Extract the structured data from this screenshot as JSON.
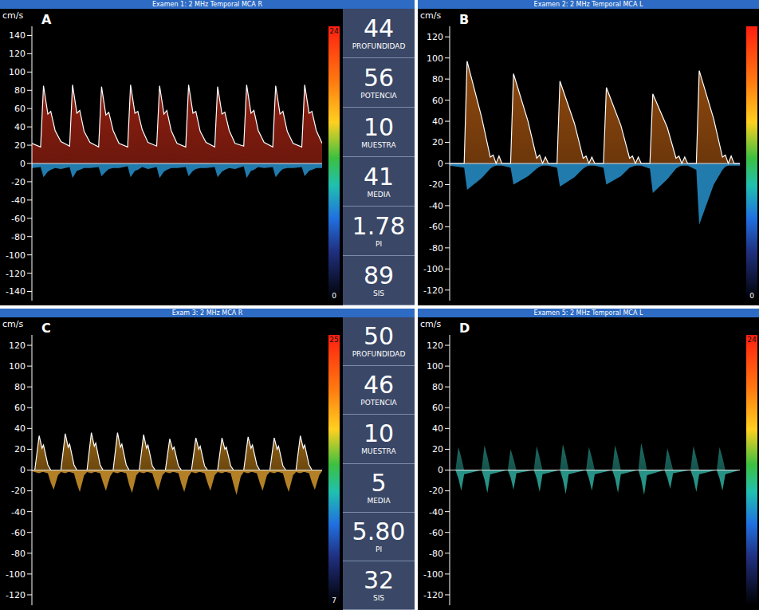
{
  "chart_data": [
    {
      "type": "area",
      "panel": "A",
      "title": "Examen 1: 2 MHz Temporal  MCA R",
      "y_label": "cm/s",
      "grid": false,
      "tick_labels": "y",
      "line_style": "solid",
      "color": "#f0341c",
      "xlim": [
        0,
        100
      ],
      "ylim": [
        -150,
        150
      ],
      "yticks": [
        140,
        120,
        100,
        80,
        60,
        40,
        20,
        0,
        -20,
        -40,
        -60,
        -80,
        -100,
        -120,
        -140
      ],
      "x": [
        0,
        3,
        4,
        5.5,
        6.5,
        8,
        10,
        13,
        14,
        15.5,
        16.5,
        18,
        20,
        23,
        24,
        25.5,
        26.5,
        28,
        30,
        33,
        34,
        35.5,
        36.5,
        38,
        40,
        43,
        44,
        45.5,
        46.5,
        48,
        50,
        53,
        54,
        55.5,
        56.5,
        58,
        60,
        63,
        64,
        65.5,
        66.5,
        68,
        70,
        73,
        74,
        75.5,
        76.5,
        78,
        80,
        83,
        84,
        85.5,
        86.5,
        88,
        90,
        93,
        94,
        95.5,
        96.5,
        98,
        100
      ],
      "values": [
        22,
        18,
        85,
        54,
        57,
        36,
        24,
        19,
        86,
        55,
        58,
        35,
        23,
        18,
        84,
        53,
        56,
        36,
        22,
        18,
        86,
        55,
        57,
        37,
        23,
        19,
        85,
        54,
        58,
        36,
        22,
        18,
        86,
        55,
        57,
        35,
        23,
        18,
        84,
        54,
        56,
        36,
        22,
        19,
        86,
        55,
        58,
        36,
        23,
        18,
        85,
        54,
        57,
        35,
        22,
        18,
        86,
        55,
        57,
        36,
        22
      ],
      "reverse": {
        "color": "#2a9ad8",
        "values": [
          -5,
          -4,
          -15,
          -9,
          -7,
          -5,
          -6,
          -4,
          -16,
          -8,
          -7,
          -5,
          -5,
          -4,
          -14,
          -9,
          -6,
          -5,
          -5,
          -3,
          -15,
          -8,
          -7,
          -4,
          -6,
          -4,
          -16,
          -9,
          -7,
          -5,
          -5,
          -4,
          -14,
          -8,
          -6,
          -5,
          -5,
          -4,
          -15,
          -9,
          -7,
          -5,
          -6,
          -3,
          -16,
          -8,
          -7,
          -4,
          -5,
          -4,
          -15,
          -9,
          -6,
          -5,
          -5,
          -4,
          -14,
          -8,
          -7,
          -5,
          -5
        ]
      },
      "colorbar": {
        "range": [
          0,
          24
        ],
        "ticks": [
          0,
          24
        ]
      },
      "readouts": [
        {
          "label": "PROFUNDIDAD",
          "value": 44
        },
        {
          "label": "POTENCIA",
          "value": 56
        },
        {
          "label": "MUESTRA",
          "value": 10
        },
        {
          "label": "MEDIA",
          "value": 41
        },
        {
          "label": "PI",
          "value": 1.78
        },
        {
          "label": "SIS",
          "value": 89
        }
      ]
    },
    {
      "type": "area",
      "panel": "B",
      "title": "Examen 2: 2 MHz Temporal  MCA L",
      "y_label": "cm/s",
      "grid": false,
      "tick_labels": "y",
      "line_style": "solid",
      "color": "#f07a18",
      "xlim": [
        0,
        100
      ],
      "ylim": [
        -130,
        130
      ],
      "yticks": [
        120,
        100,
        80,
        60,
        40,
        20,
        0,
        -20,
        -40,
        -60,
        -80,
        -100,
        -120
      ],
      "x": [
        0,
        5,
        6,
        11,
        14,
        15,
        16,
        17,
        18,
        21,
        22,
        27,
        30,
        31,
        32,
        33,
        34,
        37,
        38,
        43,
        46,
        47,
        48,
        49,
        50,
        53,
        54,
        59,
        62,
        63,
        64,
        65,
        66,
        69,
        70,
        75,
        78,
        79,
        80,
        81,
        82,
        85,
        86,
        91,
        94,
        95,
        96,
        97,
        98,
        100
      ],
      "values": [
        0,
        0,
        97,
        44,
        6,
        8,
        0,
        7,
        0,
        0,
        85,
        40,
        5,
        8,
        0,
        6,
        0,
        0,
        78,
        38,
        5,
        7,
        0,
        6,
        0,
        0,
        72,
        36,
        5,
        7,
        0,
        6,
        0,
        0,
        66,
        34,
        5,
        7,
        0,
        6,
        0,
        0,
        88,
        42,
        6,
        8,
        0,
        7,
        0,
        0
      ],
      "reverse": {
        "color": "#2a9ad8",
        "values": [
          -2,
          -4,
          -25,
          -14,
          -5,
          -3,
          -2,
          -2,
          -2,
          -4,
          -20,
          -12,
          -5,
          -3,
          -2,
          -2,
          -2,
          -4,
          -22,
          -13,
          -5,
          -3,
          -2,
          -2,
          -2,
          -4,
          -20,
          -12,
          -4,
          -3,
          -2,
          -2,
          -2,
          -5,
          -28,
          -15,
          -5,
          -3,
          -2,
          -2,
          -2,
          -6,
          -58,
          -20,
          -6,
          -3,
          -2,
          -2,
          -2,
          -2
        ]
      },
      "colorbar": {
        "range": [
          0,
          24
        ],
        "ticks": [
          0
        ]
      }
    },
    {
      "type": "area",
      "panel": "C",
      "title": "Exam 3: 2 MHz  MCA R",
      "y_label": "cm/s",
      "grid": false,
      "tick_labels": "y",
      "line_style": "solid",
      "color": "#f0a020",
      "xlim": [
        0,
        100
      ],
      "ylim": [
        -130,
        130
      ],
      "yticks": [
        120,
        100,
        80,
        60,
        40,
        20,
        0,
        -20,
        -40,
        -60,
        -80,
        -100,
        -120
      ],
      "x": [
        0,
        1,
        2.5,
        3.5,
        4,
        5.5,
        6.5,
        7.5,
        9,
        10,
        11.5,
        12.5,
        13,
        14.5,
        15.5,
        16.5,
        18,
        19,
        20.5,
        21.5,
        22,
        23.5,
        24.5,
        25.5,
        27,
        28,
        29.5,
        30.5,
        31,
        32.5,
        33.5,
        34.5,
        36,
        37,
        38.5,
        39.5,
        40,
        41.5,
        42.5,
        43.5,
        45,
        46,
        47.5,
        48.5,
        49,
        50.5,
        51.5,
        52.5,
        54,
        55,
        56.5,
        57.5,
        58,
        59.5,
        60.5,
        61.5,
        63,
        64,
        65.5,
        66.5,
        67,
        68.5,
        69.5,
        70.5,
        72,
        73,
        74.5,
        75.5,
        76,
        77.5,
        78.5,
        79.5,
        81,
        82,
        83.5,
        84.5,
        85,
        86.5,
        87.5,
        88.5,
        90,
        91,
        92.5,
        93.5,
        94,
        95.5,
        96.5,
        97.5,
        99,
        100
      ],
      "values": [
        0,
        0,
        33,
        21,
        24,
        5,
        0,
        0,
        0,
        0,
        35,
        22,
        25,
        5,
        0,
        0,
        0,
        0,
        36,
        23,
        26,
        5,
        0,
        0,
        0,
        0,
        36,
        22,
        25,
        5,
        0,
        0,
        0,
        0,
        34,
        21,
        24,
        4,
        0,
        0,
        0,
        0,
        30,
        20,
        22,
        4,
        0,
        0,
        0,
        0,
        31,
        20,
        23,
        4,
        0,
        0,
        0,
        0,
        31,
        20,
        22,
        4,
        0,
        0,
        0,
        0,
        32,
        21,
        24,
        5,
        0,
        0,
        0,
        0,
        31,
        20,
        23,
        4,
        0,
        0,
        0,
        0,
        33,
        21,
        24,
        5,
        0,
        0,
        0,
        0
      ],
      "reverse": {
        "color": "#e0a030",
        "values": [
          -1,
          -2,
          -3,
          -2,
          -2,
          -3,
          -12,
          -19,
          -5,
          -2,
          -3,
          -2,
          -2,
          -3,
          -13,
          -21,
          -5,
          -2,
          -3,
          -2,
          -2,
          -3,
          -12,
          -20,
          -6,
          -2,
          -3,
          -2,
          -2,
          -3,
          -14,
          -22,
          -5,
          -2,
          -3,
          -2,
          -2,
          -3,
          -12,
          -20,
          -5,
          -2,
          -3,
          -2,
          -2,
          -3,
          -13,
          -21,
          -6,
          -2,
          -3,
          -2,
          -2,
          -3,
          -12,
          -20,
          -5,
          -2,
          -3,
          -2,
          -2,
          -3,
          -14,
          -24,
          -6,
          -2,
          -3,
          -2,
          -2,
          -3,
          -12,
          -20,
          -5,
          -2,
          -3,
          -2,
          -2,
          -3,
          -13,
          -21,
          -5,
          -2,
          -3,
          -2,
          -2,
          -3,
          -12,
          -19,
          -5,
          -1
        ]
      },
      "colorbar": {
        "range": [
          7,
          25
        ],
        "ticks": [
          7,
          25
        ]
      },
      "readouts": [
        {
          "label": "PROFUNDIDAD",
          "value": 50
        },
        {
          "label": "POTENCIA",
          "value": 46
        },
        {
          "label": "MUESTRA",
          "value": 10
        },
        {
          "label": "MEDIA",
          "value": 5
        },
        {
          "label": "PI",
          "value": 5.8,
          "value_label": "5.80"
        },
        {
          "label": "SIS",
          "value": 32
        }
      ]
    },
    {
      "type": "area",
      "panel": "D",
      "title": "Examen 5: 2 MHz Temporal  MCA L",
      "y_label": "cm/s",
      "grid": false,
      "tick_labels": "y",
      "line_style": "none",
      "color": "#2fb8a8",
      "xlim": [
        0,
        100
      ],
      "ylim": [
        -130,
        130
      ],
      "yticks": [
        120,
        100,
        80,
        60,
        40,
        20,
        0,
        -20,
        -40,
        -60,
        -80,
        -100,
        -120
      ],
      "x": [
        0,
        2,
        3,
        4,
        5,
        11,
        12,
        13,
        14,
        20,
        21,
        22,
        23,
        29,
        30,
        31,
        32,
        38,
        39,
        40,
        41,
        47,
        48,
        49,
        50,
        56,
        57,
        58,
        59,
        65,
        66,
        67,
        68,
        74,
        75,
        76,
        77,
        83,
        84,
        85,
        86,
        92,
        93,
        94,
        95,
        100
      ],
      "values": [
        0,
        0,
        22,
        12,
        0,
        0,
        24,
        13,
        0,
        0,
        20,
        11,
        0,
        0,
        23,
        12,
        0,
        0,
        25,
        14,
        0,
        0,
        22,
        12,
        0,
        0,
        24,
        13,
        0,
        0,
        26,
        14,
        0,
        0,
        21,
        11,
        0,
        0,
        23,
        12,
        0,
        0,
        22,
        12,
        0,
        0
      ],
      "reverse": {
        "color": "#2fb8a8",
        "values": [
          0,
          0,
          -8,
          -20,
          -4,
          0,
          -9,
          -22,
          -4,
          0,
          -7,
          -19,
          -3,
          0,
          -8,
          -21,
          -4,
          0,
          -9,
          -23,
          -4,
          0,
          -8,
          -20,
          -4,
          0,
          -8,
          -22,
          -4,
          0,
          -9,
          -24,
          -5,
          0,
          -7,
          -18,
          -3,
          0,
          -8,
          -21,
          -4,
          0,
          -8,
          -20,
          -4,
          0
        ]
      },
      "colorbar": {
        "range": [
          0,
          24
        ],
        "ticks": [
          24
        ]
      }
    }
  ]
}
